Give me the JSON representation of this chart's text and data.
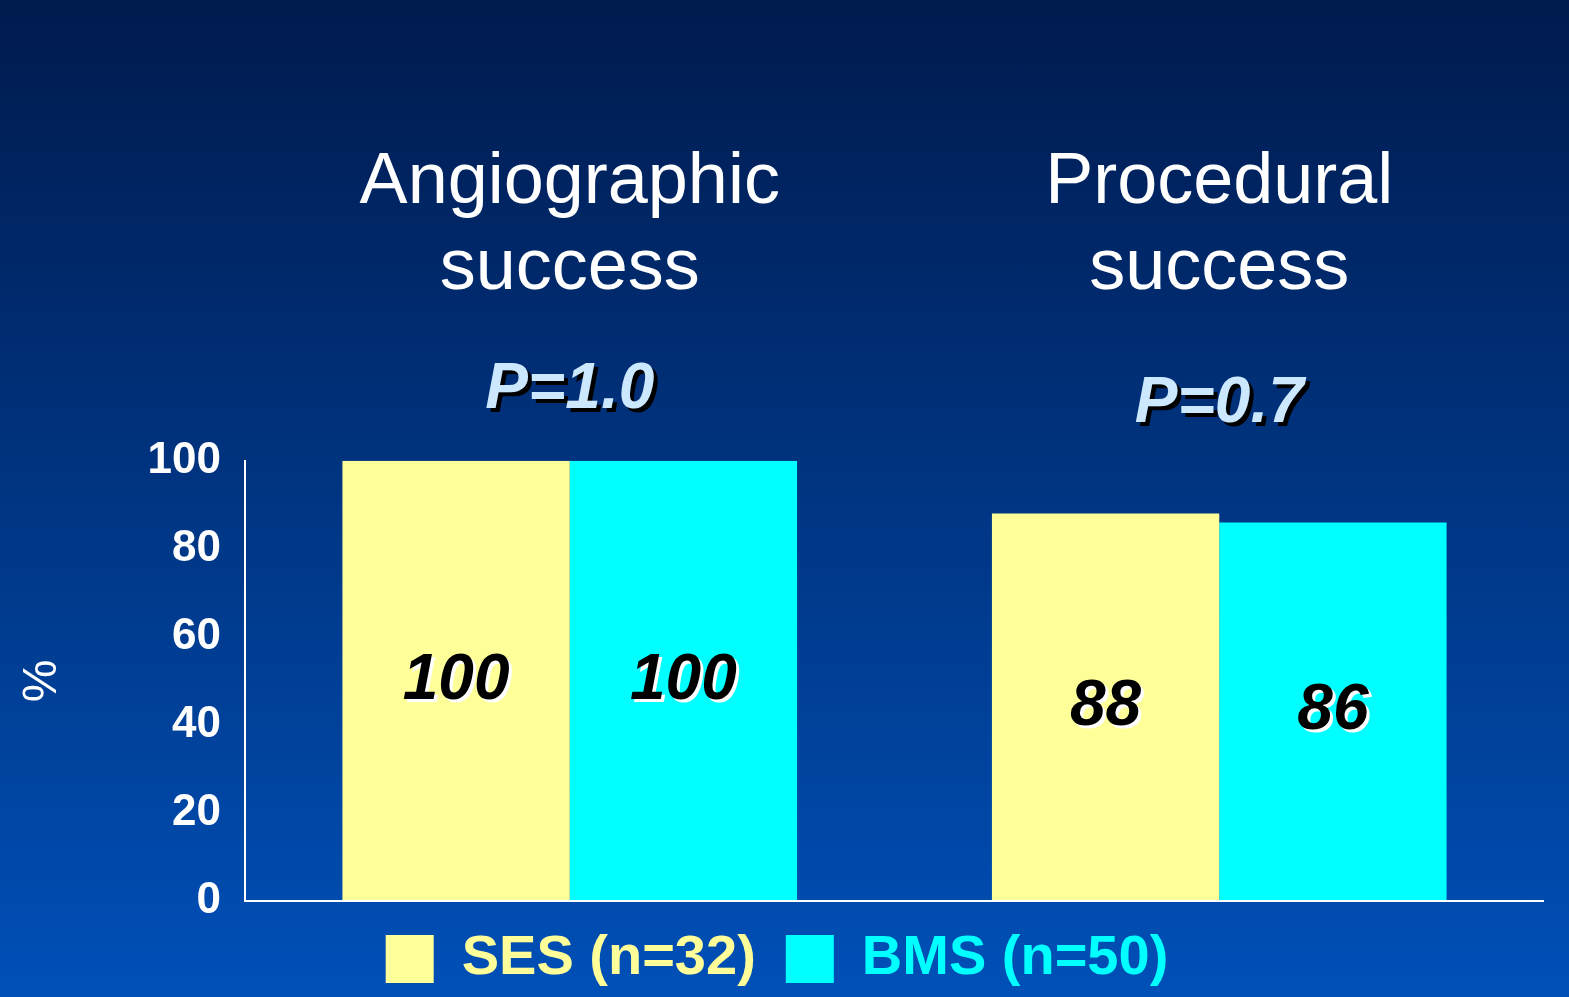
{
  "chart_data": {
    "type": "bar",
    "ylabel": "%",
    "categories": [
      "Angiographic\nsuccess",
      "Procedural\nsuccess"
    ],
    "series": [
      {
        "name": "SES (n=32)",
        "color": "#ffff99",
        "values": [
          100,
          88
        ]
      },
      {
        "name": "BMS (n=50)",
        "color": "#00ffff",
        "values": [
          100,
          86
        ]
      }
    ],
    "ylim": [
      0,
      100
    ],
    "yticks": [
      0,
      20,
      40,
      60,
      80,
      100
    ],
    "grid": false,
    "legend": "bottom",
    "data_labels": true,
    "annotations": [
      "P=1.0",
      "P=0.7"
    ]
  }
}
